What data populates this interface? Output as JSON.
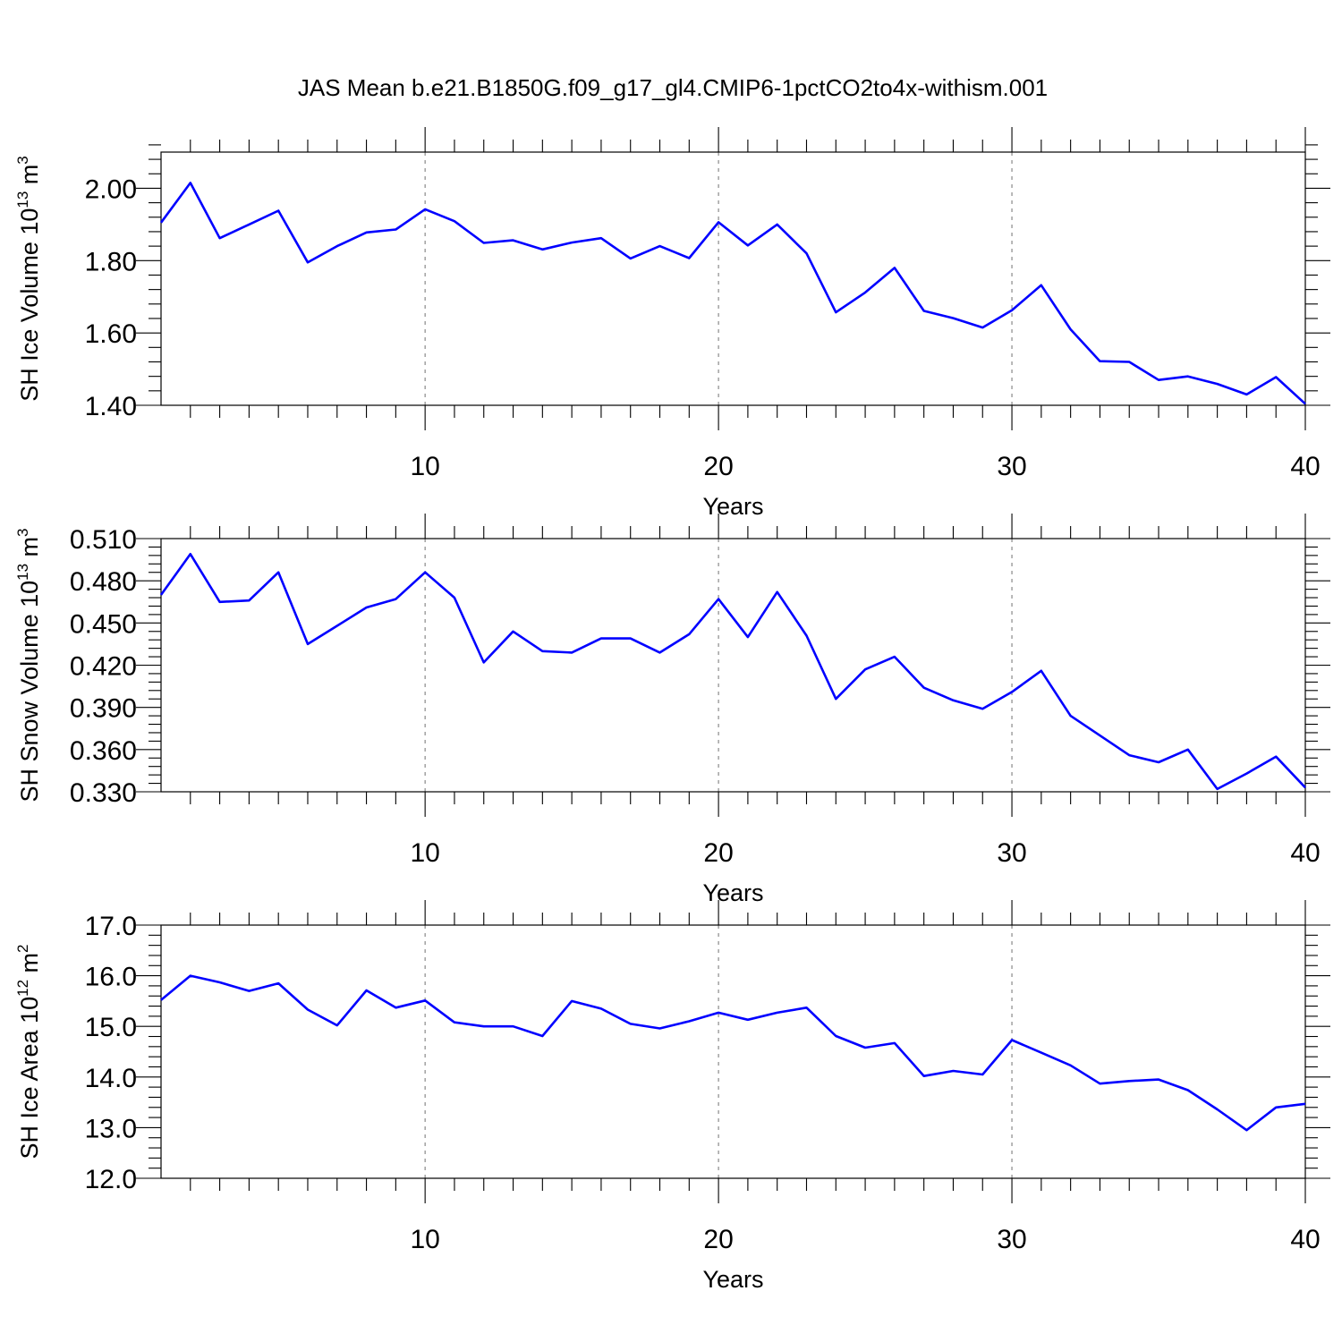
{
  "figure_title": "JAS Mean b.e21.B1850G.f09_g17_gl4.CMIP6-1pctCO2to4x-withism.001",
  "colors": {
    "line": "#0000ff",
    "frame": "#000000",
    "grid": "#888888"
  },
  "chart_data": [
    {
      "type": "line",
      "ylabel": "SH Ice Volume 10",
      "ylabel_exp": "13",
      "ylabel_unit": " m",
      "ylabel_unit_exp": "3",
      "xlabel": "Years",
      "xlim": [
        1,
        40
      ],
      "ylim": [
        1.4,
        2.1
      ],
      "yticks": [
        1.4,
        1.6,
        1.8,
        2.0
      ],
      "ytick_labels": [
        "1.40",
        "1.60",
        "1.80",
        "2.00"
      ],
      "yminor_step": 0.04,
      "xticks": [
        10,
        20,
        30,
        40
      ],
      "xtick_labels": [
        "10",
        "20",
        "30",
        "40"
      ],
      "grid_x": [
        10,
        20,
        30
      ],
      "x": [
        1,
        2,
        3,
        4,
        5,
        6,
        7,
        8,
        9,
        10,
        11,
        12,
        13,
        14,
        15,
        16,
        17,
        18,
        19,
        20,
        21,
        22,
        23,
        24,
        25,
        26,
        27,
        28,
        29,
        30,
        31,
        32,
        33,
        34,
        35,
        36,
        37,
        38,
        39,
        40
      ],
      "series": [
        {
          "values": [
            1.905,
            2.015,
            1.862,
            1.9,
            1.938,
            1.795,
            1.84,
            1.878,
            1.886,
            1.942,
            1.909,
            1.849,
            1.856,
            1.831,
            1.85,
            1.862,
            1.806,
            1.84,
            1.807,
            1.906,
            1.842,
            1.9,
            1.82,
            1.657,
            1.712,
            1.78,
            1.661,
            1.641,
            1.615,
            1.663,
            1.732,
            1.61,
            1.522,
            1.52,
            1.47,
            1.48,
            1.459,
            1.43,
            1.478,
            1.404
          ]
        }
      ]
    },
    {
      "type": "line",
      "ylabel": "SH Snow Volume 10",
      "ylabel_exp": "13",
      "ylabel_unit": " m",
      "ylabel_unit_exp": "3",
      "xlabel": "Years",
      "xlim": [
        1,
        40
      ],
      "ylim": [
        0.33,
        0.51
      ],
      "yticks": [
        0.33,
        0.36,
        0.39,
        0.42,
        0.45,
        0.48,
        0.51
      ],
      "ytick_labels": [
        "0.330",
        "0.360",
        "0.390",
        "0.420",
        "0.450",
        "0.480",
        "0.510"
      ],
      "yminor_step": 0.006,
      "xticks": [
        10,
        20,
        30,
        40
      ],
      "xtick_labels": [
        "10",
        "20",
        "30",
        "40"
      ],
      "grid_x": [
        10,
        20,
        30
      ],
      "x": [
        1,
        2,
        3,
        4,
        5,
        6,
        7,
        8,
        9,
        10,
        11,
        12,
        13,
        14,
        15,
        16,
        17,
        18,
        19,
        20,
        21,
        22,
        23,
        24,
        25,
        26,
        27,
        28,
        29,
        30,
        31,
        32,
        33,
        34,
        35,
        36,
        37,
        38,
        39,
        40
      ],
      "series": [
        {
          "values": [
            0.47,
            0.499,
            0.465,
            0.466,
            0.486,
            0.435,
            0.448,
            0.461,
            0.467,
            0.486,
            0.468,
            0.422,
            0.444,
            0.43,
            0.429,
            0.439,
            0.439,
            0.429,
            0.442,
            0.467,
            0.44,
            0.472,
            0.441,
            0.396,
            0.417,
            0.426,
            0.404,
            0.395,
            0.389,
            0.401,
            0.416,
            0.384,
            0.37,
            0.356,
            0.351,
            0.36,
            0.332,
            0.343,
            0.355,
            0.333
          ]
        }
      ]
    },
    {
      "type": "line",
      "ylabel": "SH Ice Area 10",
      "ylabel_exp": "12",
      "ylabel_unit": " m",
      "ylabel_unit_exp": "2",
      "xlabel": "Years",
      "xlim": [
        1,
        40
      ],
      "ylim": [
        12.0,
        17.0
      ],
      "yticks": [
        12.0,
        13.0,
        14.0,
        15.0,
        16.0,
        17.0
      ],
      "ytick_labels": [
        "12.0",
        "13.0",
        "14.0",
        "15.0",
        "16.0",
        "17.0"
      ],
      "yminor_step": 0.2,
      "xticks": [
        10,
        20,
        30,
        40
      ],
      "xtick_labels": [
        "10",
        "20",
        "30",
        "40"
      ],
      "grid_x": [
        10,
        20,
        30
      ],
      "x": [
        1,
        2,
        3,
        4,
        5,
        6,
        7,
        8,
        9,
        10,
        11,
        12,
        13,
        14,
        15,
        16,
        17,
        18,
        19,
        20,
        21,
        22,
        23,
        24,
        25,
        26,
        27,
        28,
        29,
        30,
        31,
        32,
        33,
        34,
        35,
        36,
        37,
        38,
        39,
        40
      ],
      "series": [
        {
          "values": [
            15.52,
            16.0,
            15.87,
            15.7,
            15.85,
            15.33,
            15.02,
            15.71,
            15.37,
            15.51,
            15.08,
            15.0,
            15.0,
            14.81,
            15.5,
            15.35,
            15.05,
            14.96,
            15.1,
            15.27,
            15.13,
            15.27,
            15.37,
            14.81,
            14.58,
            14.67,
            14.02,
            14.12,
            14.05,
            14.73,
            14.48,
            14.23,
            13.87,
            13.92,
            13.95,
            13.74,
            13.36,
            12.95,
            13.4,
            13.47
          ]
        }
      ]
    }
  ]
}
